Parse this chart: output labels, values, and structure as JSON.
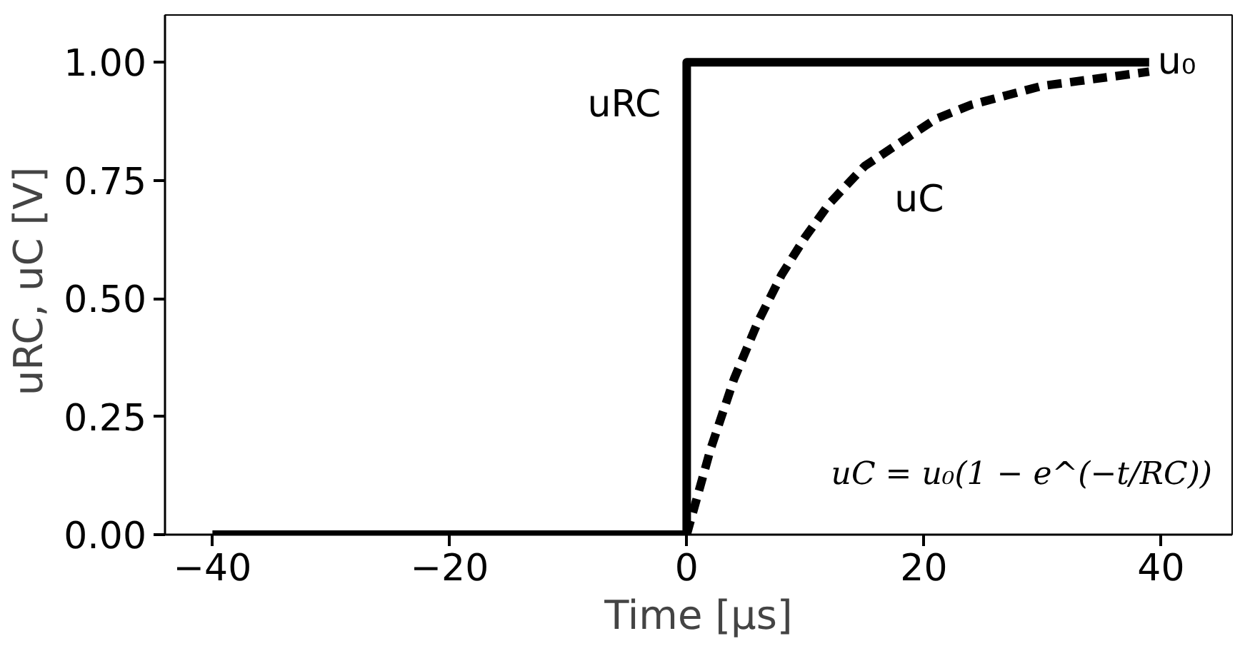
{
  "chart_data": {
    "type": "line",
    "xlabel": "Time [μs]",
    "ylabel": "uRC,  uC [V]",
    "xlim": [
      -44,
      46
    ],
    "ylim": [
      0,
      1.1
    ],
    "xticks": [
      -40,
      -20,
      0,
      20,
      40
    ],
    "yticks": [
      {
        "value": 0,
        "label": "0.00"
      },
      {
        "value": 0.25,
        "label": "0.25"
      },
      {
        "value": 0.5,
        "label": "0.50"
      },
      {
        "value": 0.75,
        "label": "0.75"
      },
      {
        "value": 1,
        "label": "1.00"
      }
    ],
    "grid": false,
    "series": [
      {
        "name": "uRC",
        "color": "#000000",
        "line_style": "solid",
        "x": [
          -40,
          0,
          0,
          39
        ],
        "values": [
          0,
          0,
          1,
          1
        ]
      },
      {
        "name": "uC",
        "color": "#000000",
        "line_style": "dashed",
        "x": [
          0,
          2,
          4,
          6,
          8,
          10,
          12,
          15,
          18,
          21,
          24,
          27,
          30,
          33,
          36,
          39
        ],
        "values": [
          0,
          0.18,
          0.33,
          0.45,
          0.55,
          0.63,
          0.7,
          0.78,
          0.83,
          0.88,
          0.91,
          0.93,
          0.95,
          0.96,
          0.97,
          0.98
        ]
      }
    ],
    "annotations": [
      "u₀",
      "uC = u₀(1 − e^(−t/RC))"
    ]
  }
}
